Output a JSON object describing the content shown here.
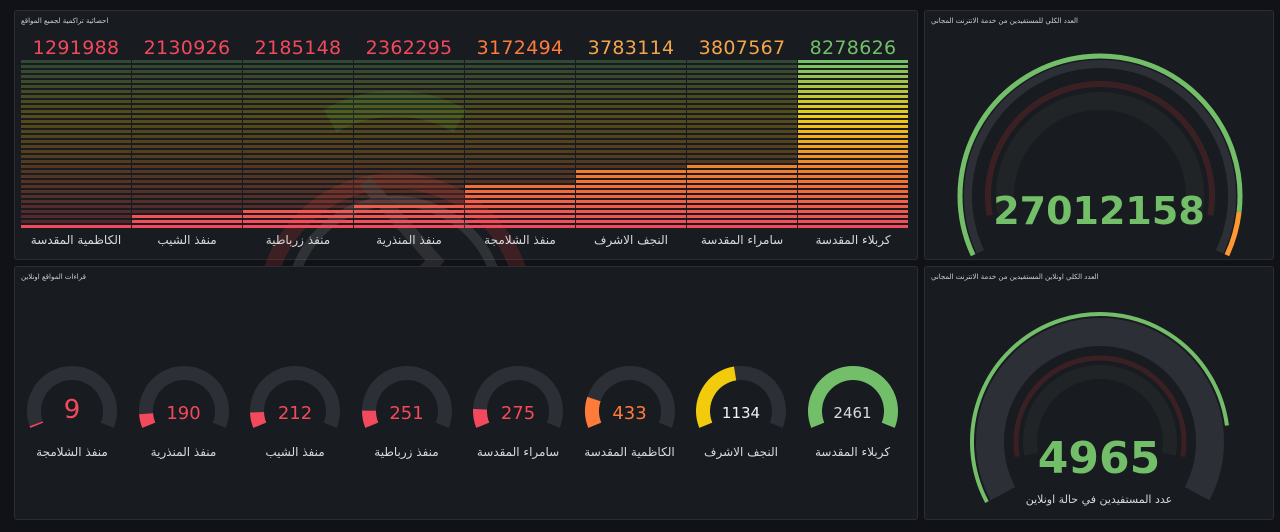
{
  "bars": {
    "title": "احصائية تراكمية لجميع المواقع",
    "items": [
      {
        "value": "1291988",
        "label": "الكاظمية المقدسة",
        "color": "#f2495c",
        "level": 0.03
      },
      {
        "value": "2130926",
        "label": "منفذ الشيب",
        "color": "#f2495c",
        "level": 0.1
      },
      {
        "value": "2185148",
        "label": "منفذ زرباطية",
        "color": "#f2495c",
        "level": 0.11
      },
      {
        "value": "2362295",
        "label": "منفذ المنذرية",
        "color": "#f2495c",
        "level": 0.14
      },
      {
        "value": "3172494",
        "label": "منفذ الشلامجة",
        "color": "#ff7b3a",
        "level": 0.27
      },
      {
        "value": "3783114",
        "label": "النجف الاشرف",
        "color": "#f3a54a",
        "level": 0.36
      },
      {
        "value": "3807567",
        "label": "سامراء المقدسة",
        "color": "#f3a54a",
        "level": 0.37
      },
      {
        "value": "8278626",
        "label": "كربلاء المقدسة",
        "color": "#73bf69",
        "level": 1.0
      }
    ]
  },
  "total": {
    "title": "العدد الكلي للمستفيدين من خدمة الانترنت المجاني",
    "value": "27012158",
    "level": 0.92
  },
  "sites": {
    "title": "قراءات المواقع اونلاين",
    "items": [
      {
        "value": "9",
        "label": "منفذ الشلامجة",
        "color": "#f2495c",
        "level": 0.004
      },
      {
        "value": "190",
        "label": "منفذ المنذرية",
        "color": "#f2495c",
        "level": 0.08
      },
      {
        "value": "212",
        "label": "منفذ الشيب",
        "color": "#f2495c",
        "level": 0.09
      },
      {
        "value": "251",
        "label": "منفذ زرباطية",
        "color": "#f2495c",
        "level": 0.1
      },
      {
        "value": "275",
        "label": "سامراء المقدسة",
        "color": "#f2495c",
        "level": 0.11
      },
      {
        "value": "433",
        "label": "الكاظمية المقدسة",
        "color": "#ff7b3a",
        "level": 0.18
      },
      {
        "value": "1134",
        "label": "النجف الاشرف",
        "color": "#f2cc0c",
        "level": 0.46
      },
      {
        "value": "2461",
        "label": "كربلاء المقدسة",
        "color": "#73bf69",
        "level": 1.0
      }
    ]
  },
  "online": {
    "title": "العدد الكلي اونلاين المستفيدين من خدمة الانترنت المجاني",
    "value": "4965",
    "caption": "عدد المستفيدين في حالة اونلاين",
    "level": 0.85
  },
  "colors": {
    "green": "#73bf69",
    "red": "#f2495c",
    "orange": "#ff7b3a",
    "yellow": "#f2cc0c",
    "track": "#2c2f36"
  }
}
